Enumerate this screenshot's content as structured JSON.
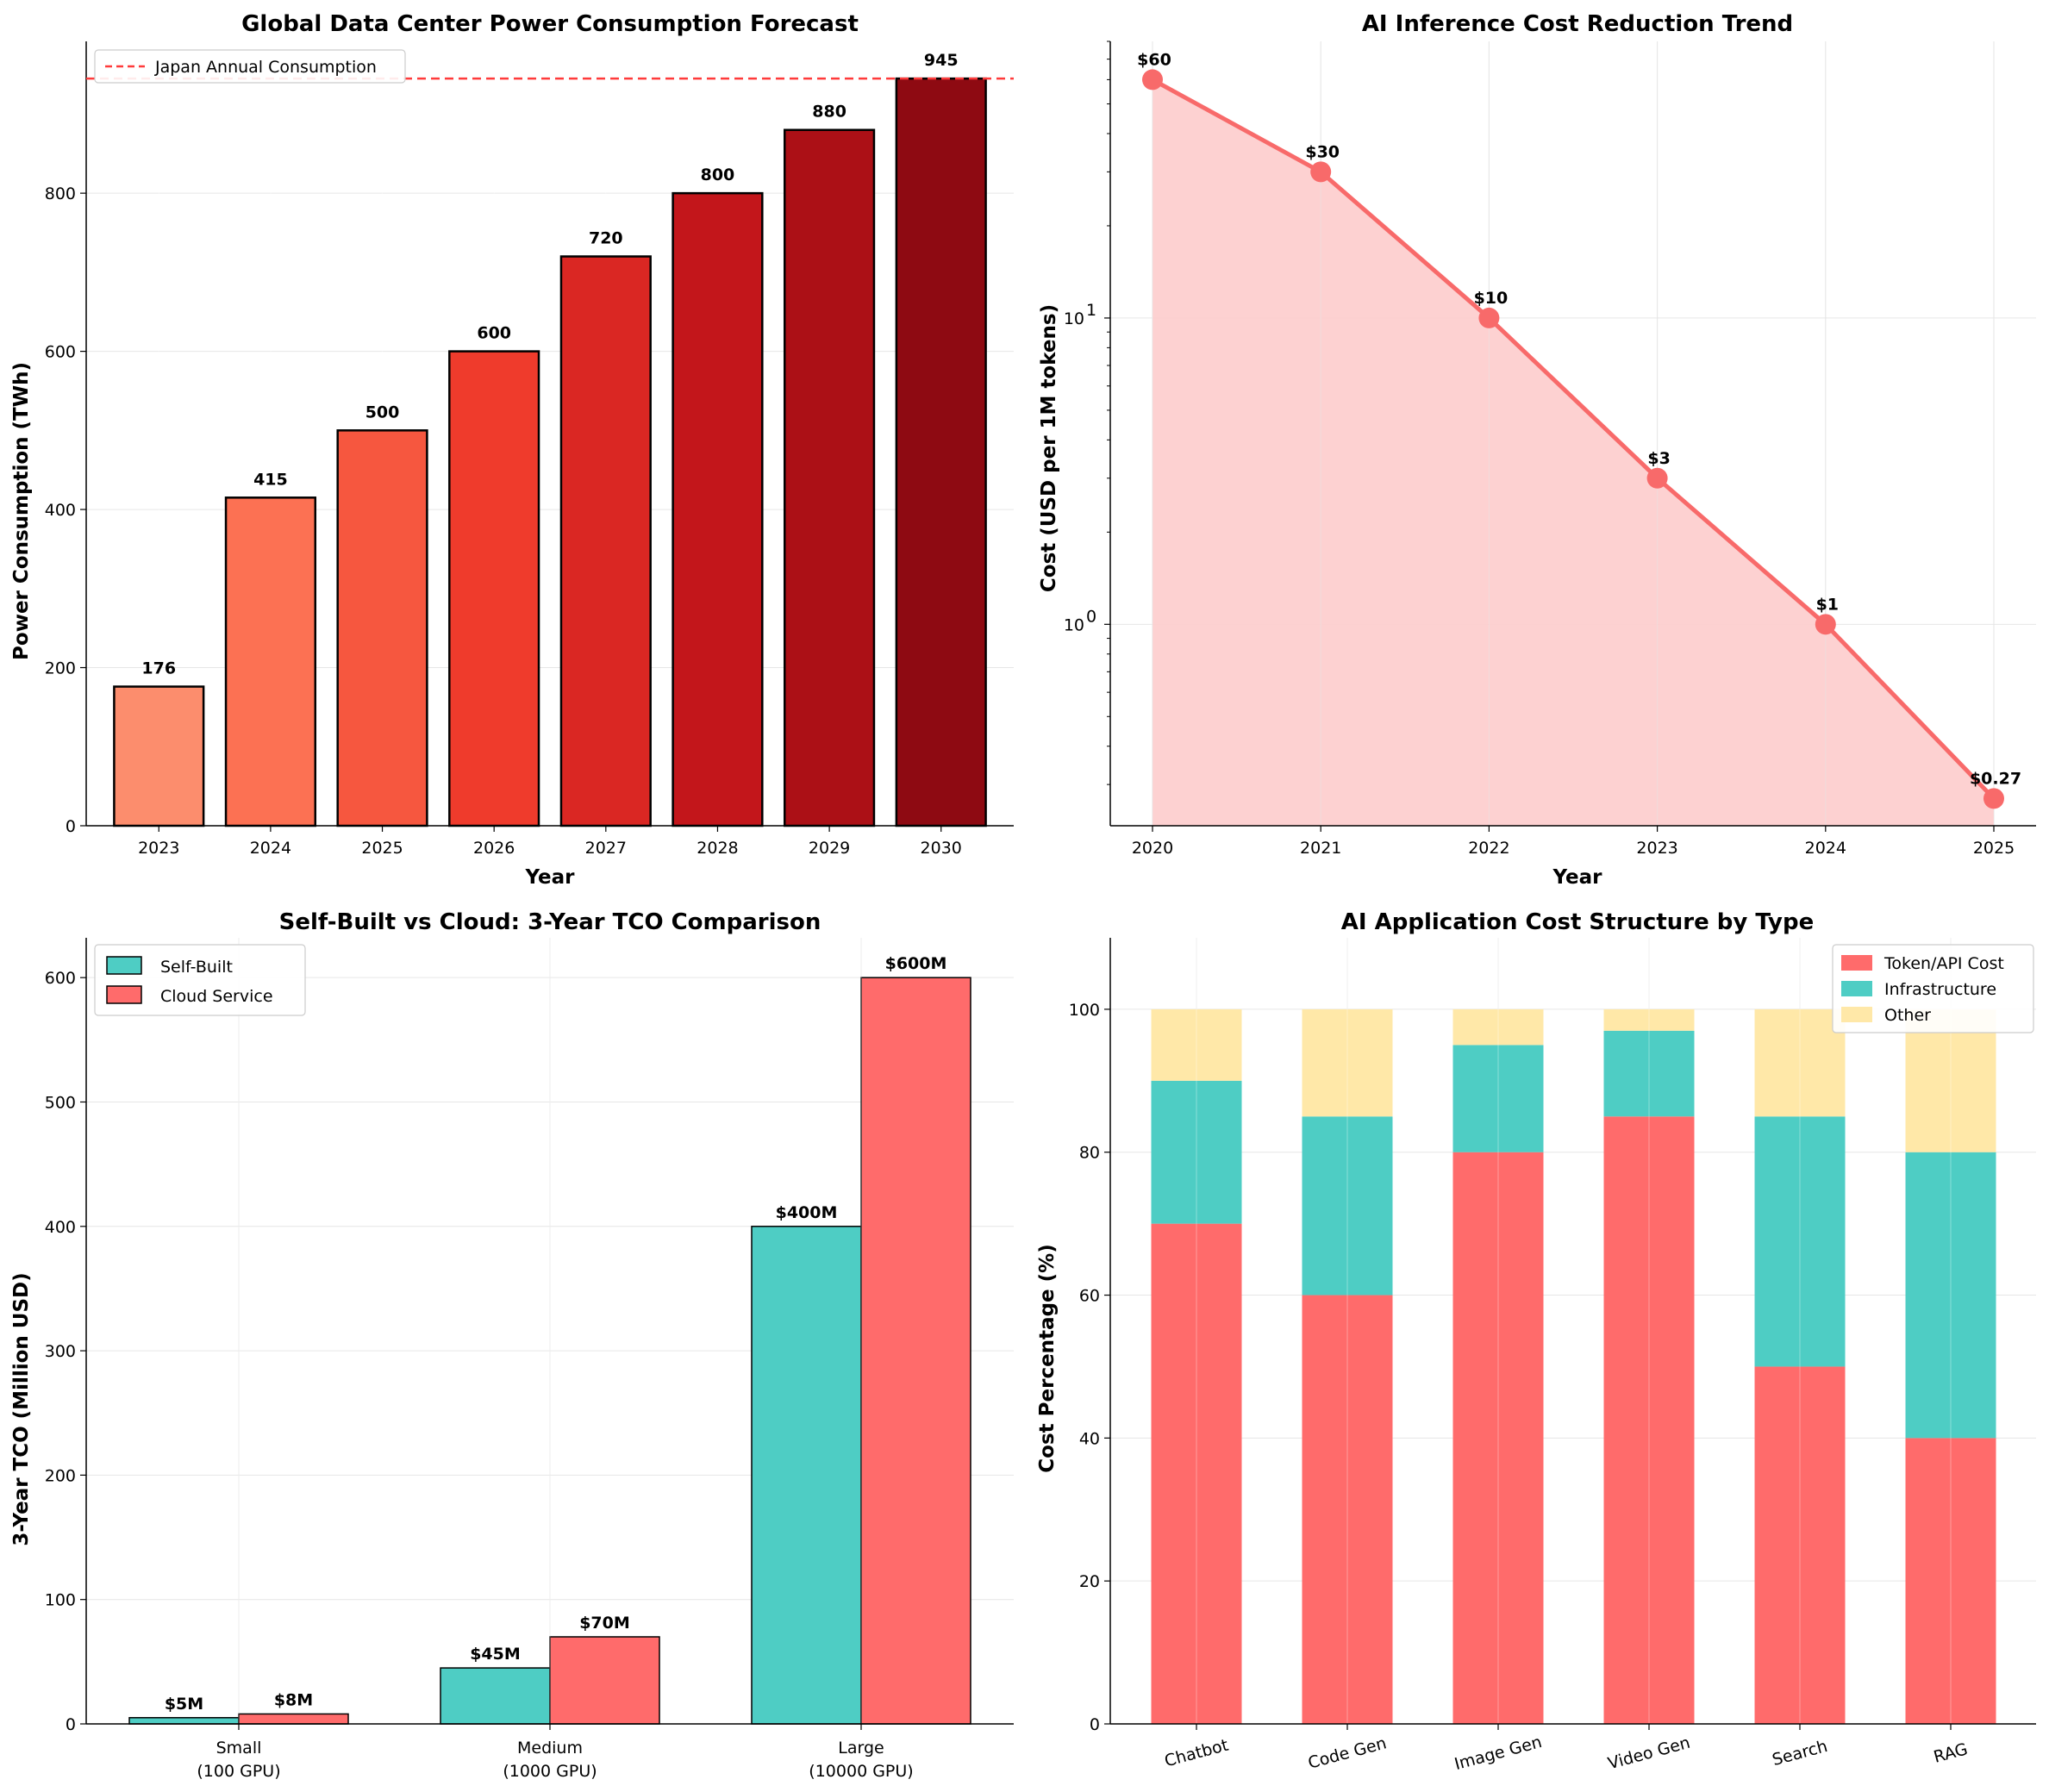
{
  "chart_data": [
    {
      "type": "bar",
      "title": "Global Data Center Power Consumption Forecast",
      "xlabel": "Year",
      "ylabel": "Power Consumption (TWh)",
      "categories": [
        "2023",
        "2024",
        "2025",
        "2026",
        "2027",
        "2028",
        "2029",
        "2030"
      ],
      "values": [
        176,
        415,
        500,
        600,
        720,
        800,
        880,
        945
      ],
      "value_labels": [
        "176",
        "415",
        "500",
        "600",
        "720",
        "800",
        "880",
        "945"
      ],
      "bar_colors": [
        "#fc8d6d",
        "#fc7153",
        "#f6573f",
        "#ef3b2c",
        "#da2723",
        "#c3161b",
        "#ac1016",
        "#8e0a12"
      ],
      "ylim": [
        0,
        992
      ],
      "yticks": [
        0,
        200,
        400,
        600,
        800
      ],
      "reference_line": {
        "label": "Japan Annual Consumption",
        "value": 945,
        "color": "#ff3b3b"
      },
      "legend": "top-left",
      "grid": true
    },
    {
      "type": "line",
      "title": "AI Inference Cost Reduction Trend",
      "xlabel": "Year",
      "ylabel": "Cost (USD per 1M tokens)",
      "x": [
        2020,
        2021,
        2022,
        2023,
        2024,
        2025
      ],
      "xticks": [
        "2020",
        "2021",
        "2022",
        "2023",
        "2024",
        "2025"
      ],
      "y": [
        60,
        30,
        10,
        3,
        1,
        0.27
      ],
      "point_labels": [
        "$60",
        "$30",
        "$10",
        "$3",
        "$1",
        "$0.27"
      ],
      "yscale": "log",
      "ylim": [
        0.22,
        80
      ],
      "yticks": [
        {
          "value": 1,
          "base": "10",
          "exp": "0"
        },
        {
          "value": 10,
          "base": "10",
          "exp": "1"
        }
      ],
      "color": "#f86a6a",
      "fill_color": "#fdcfcf",
      "grid": true
    },
    {
      "type": "bar",
      "title": "Self-Built vs Cloud: 3-Year TCO Comparison",
      "xlabel": "",
      "ylabel": "3-Year TCO (Million USD)",
      "categories": [
        {
          "line1": "Small",
          "line2": "(100 GPU)"
        },
        {
          "line1": "Medium",
          "line2": "(1000 GPU)"
        },
        {
          "line1": "Large",
          "line2": "(10000 GPU)"
        }
      ],
      "series": [
        {
          "name": "Self-Built",
          "color": "#4ecdc4",
          "values": [
            5,
            45,
            400
          ],
          "labels": [
            "$5M",
            "$45M",
            "$400M"
          ]
        },
        {
          "name": "Cloud Service",
          "color": "#ff6b6b",
          "values": [
            8,
            70,
            600
          ],
          "labels": [
            "$8M",
            "$70M",
            "$600M"
          ]
        }
      ],
      "ylim": [
        0,
        632
      ],
      "yticks": [
        0,
        100,
        200,
        300,
        400,
        500,
        600
      ],
      "legend": "top-left",
      "grid": true
    },
    {
      "type": "bar",
      "stacked": true,
      "title": "AI Application Cost Structure by Type",
      "xlabel": "",
      "ylabel": "Cost Percentage (%)",
      "categories": [
        "Chatbot",
        "Code Gen",
        "Image Gen",
        "Video Gen",
        "Search",
        "RAG"
      ],
      "series": [
        {
          "name": "Token/API Cost",
          "color": "#ff6b6b",
          "values": [
            70,
            60,
            80,
            85,
            50,
            40
          ]
        },
        {
          "name": "Infrastructure",
          "color": "#4ecdc4",
          "values": [
            20,
            25,
            15,
            12,
            35,
            40
          ]
        },
        {
          "name": "Other",
          "color": "#ffe8a8",
          "values": [
            10,
            15,
            5,
            3,
            15,
            20
          ]
        }
      ],
      "ylim": [
        0,
        110
      ],
      "yticks": [
        0,
        20,
        40,
        60,
        80,
        100
      ],
      "legend": "top-right",
      "grid": true
    }
  ]
}
